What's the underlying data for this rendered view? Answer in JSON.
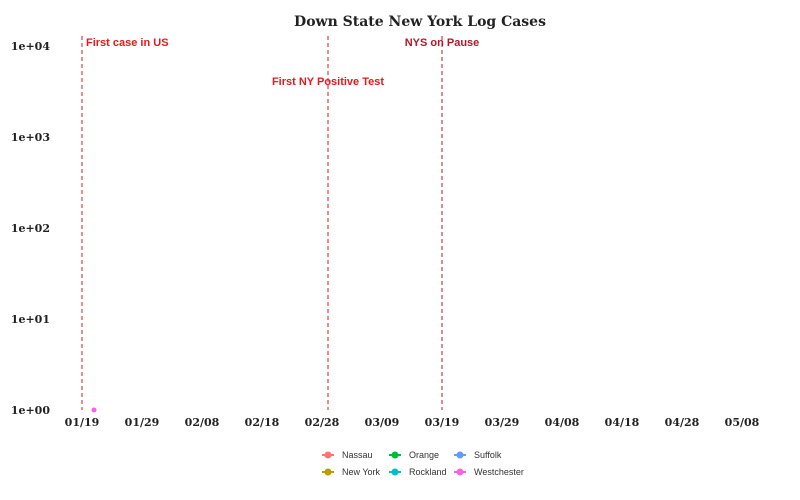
{
  "chart_data": {
    "type": "line",
    "title": "Down State New York Log Cases",
    "xlabel": "",
    "ylabel": "",
    "x_ticks": [
      "01/19",
      "01/29",
      "02/08",
      "02/18",
      "02/28",
      "03/09",
      "03/19",
      "03/29",
      "04/08",
      "04/18",
      "04/28",
      "05/08"
    ],
    "y_ticks": [
      "1e+00",
      "1e+01",
      "1e+02",
      "1e+03",
      "1e+04"
    ],
    "y_scale": "log",
    "grid": false,
    "legend_position": "bottom",
    "series": [
      {
        "name": "Nassau",
        "color": "#F8766D",
        "x": [],
        "y": []
      },
      {
        "name": "New York",
        "color": "#B79F00",
        "x": [],
        "y": []
      },
      {
        "name": "Orange",
        "color": "#00BA38",
        "x": [],
        "y": []
      },
      {
        "name": "Rockland",
        "color": "#00BFC4",
        "x": [],
        "y": []
      },
      {
        "name": "Suffolk",
        "color": "#619CFF",
        "x": [],
        "y": []
      },
      {
        "name": "Westchester",
        "color": "#F564E3",
        "x": [
          "01/21"
        ],
        "y": [
          1
        ]
      }
    ],
    "annotations": [
      {
        "label": "First case in US",
        "x": "01/19",
        "color": "#E31A1C"
      },
      {
        "label": "First NY Positive Test",
        "x": "02/29",
        "color": "#E31A1C"
      },
      {
        "label": "NYS on Pause",
        "x": "03/19",
        "color": "#B2182B"
      }
    ]
  }
}
